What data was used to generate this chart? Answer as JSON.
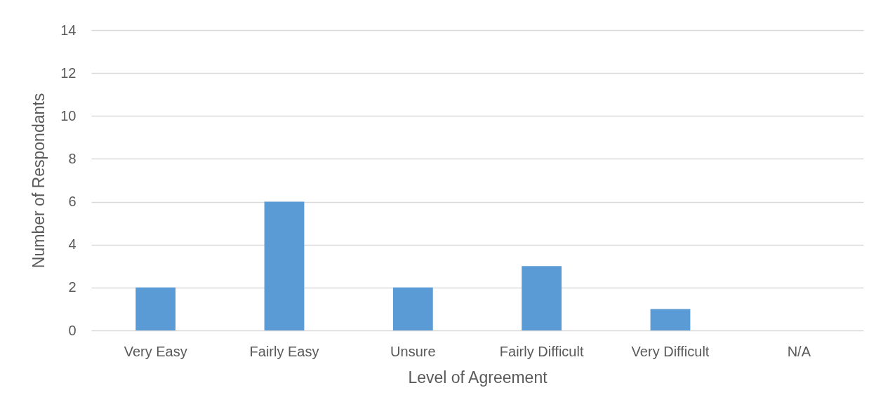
{
  "chart_data": {
    "type": "bar",
    "xlabel": "Level of Agreement",
    "ylabel": "Number of Respondants",
    "categories": [
      "Very Easy",
      "Fairly Easy",
      "Unsure",
      "Fairly Difficult",
      "Very Difficult",
      "N/A"
    ],
    "values": [
      2,
      6,
      2,
      3,
      1,
      0
    ],
    "color": "#5b9bd5",
    "ylim": [
      0,
      14
    ],
    "yticks": [
      0,
      2,
      4,
      6,
      8,
      10,
      12,
      14
    ],
    "grid": "y"
  }
}
